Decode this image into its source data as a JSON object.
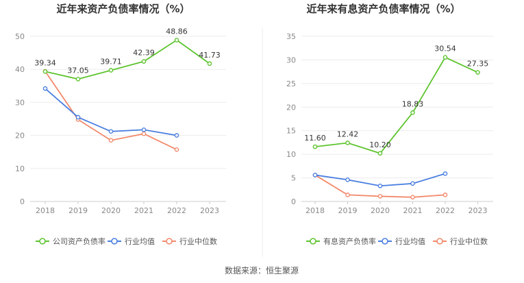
{
  "source": "数据来源：恒生聚源",
  "chart_data": [
    {
      "type": "line",
      "title": "近年来资产负债率情况（%）",
      "categories": [
        "2018",
        "2019",
        "2020",
        "2021",
        "2022",
        "2023"
      ],
      "ylim": [
        0,
        50
      ],
      "yticks": [
        0,
        10,
        20,
        30,
        40,
        50
      ],
      "grid": true,
      "legend_position": "bottom",
      "series": [
        {
          "name": "公司资产负债率",
          "color": "#5ec42f",
          "values": [
            39.34,
            37.05,
            39.71,
            42.39,
            48.86,
            41.73
          ],
          "labels": [
            "39.34",
            "37.05",
            "39.71",
            "42.39",
            "48.86",
            "41.73"
          ]
        },
        {
          "name": "行业均值",
          "color": "#4a7fe0",
          "values": [
            34.2,
            25.5,
            21.2,
            21.7,
            20.0,
            null
          ]
        },
        {
          "name": "行业中位数",
          "color": "#f3896b",
          "values": [
            39.4,
            24.8,
            18.5,
            20.5,
            15.7,
            null
          ]
        }
      ]
    },
    {
      "type": "line",
      "title": "近年来有息资产负债率情况（%）",
      "categories": [
        "2018",
        "2019",
        "2020",
        "2021",
        "2022",
        "2023"
      ],
      "ylim": [
        0,
        35
      ],
      "yticks": [
        0,
        5,
        10,
        15,
        20,
        25,
        30,
        35
      ],
      "grid": true,
      "legend_position": "bottom",
      "series": [
        {
          "name": "有息资产负债率",
          "color": "#5ec42f",
          "values": [
            11.6,
            12.42,
            10.2,
            18.83,
            30.54,
            27.35
          ],
          "labels": [
            "11.60",
            "12.42",
            "10.20",
            "18.83",
            "30.54",
            "27.35"
          ]
        },
        {
          "name": "行业均值",
          "color": "#4a7fe0",
          "values": [
            5.6,
            4.6,
            3.3,
            3.8,
            5.9,
            null
          ]
        },
        {
          "name": "行业中位数",
          "color": "#f3896b",
          "values": [
            5.6,
            1.4,
            1.1,
            0.9,
            1.4,
            null
          ]
        }
      ]
    }
  ]
}
